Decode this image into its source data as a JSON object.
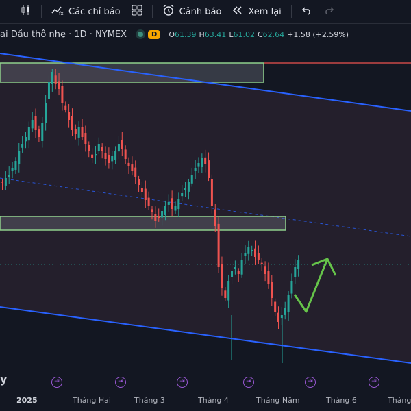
{
  "toolbar": {
    "indicators_label": "Các chỉ báo",
    "alerts_label": "Cảnh báo",
    "replay_label": "Xem lại"
  },
  "legend": {
    "symbol": "ai Dầu thô nhẹ · 1D · NYMEX",
    "interval_badge": "D",
    "open_key": "O",
    "open": "61.39",
    "high_key": "H",
    "high": "63.41",
    "low_key": "L",
    "low": "61.02",
    "close_key": "C",
    "close": "62.64",
    "change": "+1.58 (+2.59%)"
  },
  "xaxis": {
    "labels": [
      "2025",
      "Tháng Hai",
      "Tháng 3",
      "Tháng 4",
      "Tháng Năm",
      "Tháng 6",
      "Tháng"
    ]
  },
  "watermark": "y",
  "colors": {
    "up": "#26a69a",
    "down": "#ef5350",
    "channel": "#2962ff",
    "zone": "#8fd18c",
    "arrow": "#66c44a",
    "event_marker": "#9b59d6"
  },
  "chart_data": {
    "type": "candlestick",
    "annotations": [
      "descending channel",
      "resistance zone",
      "support zone",
      "projected upward arrow"
    ]
  }
}
